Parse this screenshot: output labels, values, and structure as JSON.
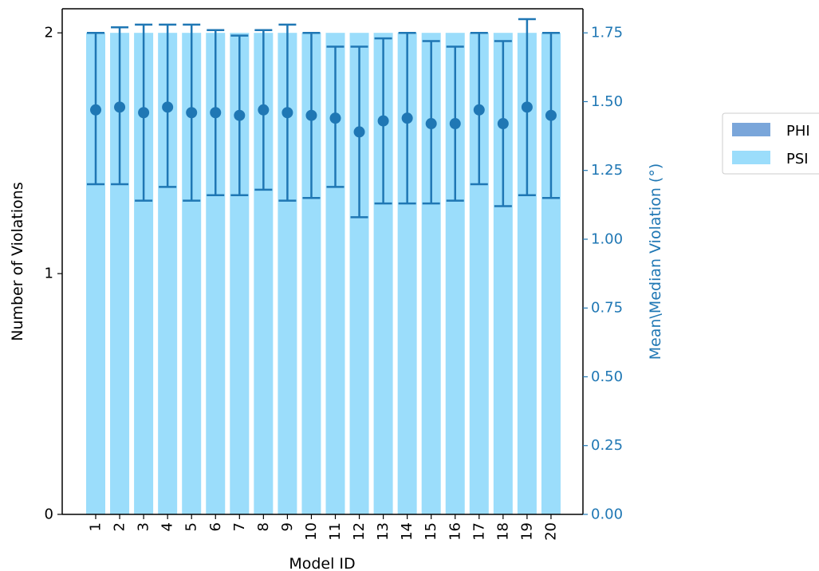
{
  "chart_data": {
    "type": "bar",
    "xlabel": "Model ID",
    "ylabel_left": "Number of Violations",
    "ylabel_right": "Mean\\Median Violation (°)",
    "categories": [
      "1",
      "2",
      "3",
      "4",
      "5",
      "6",
      "7",
      "8",
      "9",
      "10",
      "11",
      "12",
      "13",
      "14",
      "15",
      "16",
      "17",
      "18",
      "19",
      "20"
    ],
    "left_axis": {
      "ylim": [
        0,
        2.1
      ],
      "ticks": [
        "0",
        "1",
        "2"
      ]
    },
    "right_axis": {
      "ylim": [
        0,
        1.8375
      ],
      "ticks": [
        "0.00",
        "0.25",
        "0.50",
        "0.75",
        "1.00",
        "1.25",
        "1.50",
        "1.75"
      ]
    },
    "series": [
      {
        "name": "PHI",
        "axis": "left",
        "values": [
          0,
          0,
          0,
          0,
          0,
          0,
          0,
          0,
          0,
          0,
          0,
          0,
          0,
          0,
          0,
          0,
          0,
          0,
          0,
          0
        ]
      },
      {
        "name": "PSI",
        "axis": "left",
        "values": [
          2,
          2,
          2,
          2,
          2,
          2,
          2,
          2,
          2,
          2,
          2,
          2,
          2,
          2,
          2,
          2,
          2,
          2,
          2,
          2
        ]
      }
    ],
    "markers": {
      "axis": "right",
      "values": [
        1.47,
        1.48,
        1.46,
        1.48,
        1.46,
        1.46,
        1.45,
        1.47,
        1.46,
        1.45,
        1.44,
        1.39,
        1.43,
        1.44,
        1.42,
        1.42,
        1.47,
        1.42,
        1.48,
        1.45
      ],
      "err_low": [
        1.2,
        1.2,
        1.14,
        1.19,
        1.14,
        1.16,
        1.16,
        1.18,
        1.14,
        1.15,
        1.19,
        1.08,
        1.13,
        1.13,
        1.13,
        1.14,
        1.2,
        1.12,
        1.16,
        1.15
      ],
      "err_high": [
        1.75,
        1.77,
        1.78,
        1.78,
        1.78,
        1.76,
        1.74,
        1.76,
        1.78,
        1.75,
        1.7,
        1.7,
        1.73,
        1.75,
        1.72,
        1.7,
        1.75,
        1.72,
        1.8,
        1.75
      ]
    },
    "legend": {
      "placement": "outside-right",
      "entries": [
        "PHI",
        "PSI"
      ]
    },
    "colors": {
      "PHI": "#7aa6da",
      "PSI": "#9bddfb",
      "marker": "#1f77b4",
      "right_axis": "#1f77b4"
    },
    "grid": false
  }
}
